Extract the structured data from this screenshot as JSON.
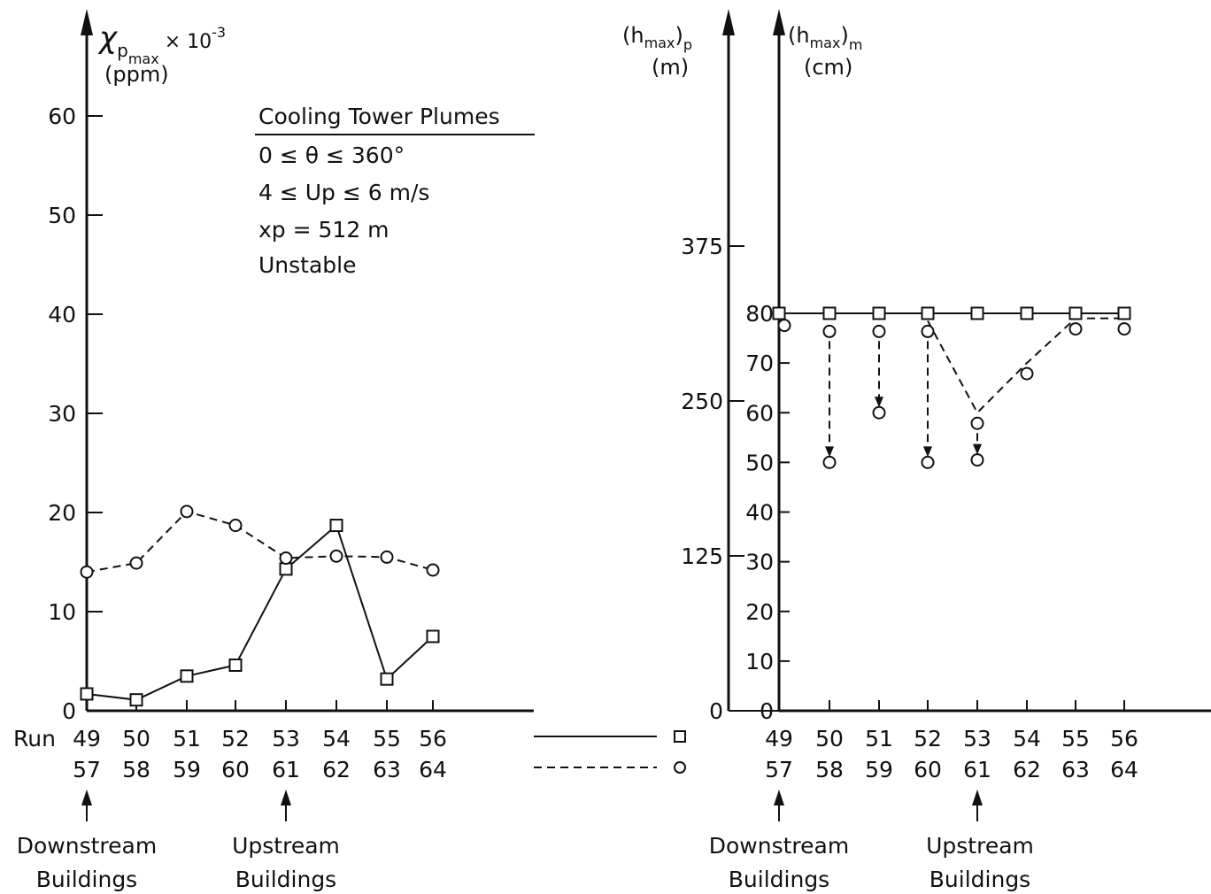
{
  "chart_data": [
    {
      "type": "line",
      "ylabel": "χpmax × 10⁻³",
      "ylabel_base": "χ",
      "ylabel_sub": "p",
      "ylabel_subsub": "max",
      "ylabel_mult": "× 10",
      "ylabel_exp": "-3",
      "yunit": "(ppm)",
      "ylim": [
        0,
        60
      ],
      "yticks": [
        "0",
        "10",
        "20",
        "30",
        "40",
        "50",
        "60"
      ],
      "yticks_values": [
        0,
        10,
        20,
        30,
        40,
        50,
        60
      ],
      "run_label": "Run",
      "x_row1": [
        "49",
        "50",
        "51",
        "52",
        "53",
        "54",
        "55",
        "56"
      ],
      "x_row2": [
        "57",
        "58",
        "59",
        "60",
        "61",
        "62",
        "63",
        "64"
      ],
      "series": [
        {
          "marker": "square",
          "line": "solid",
          "values": [
            1.7,
            1.1,
            3.5,
            4.6,
            14.3,
            18.7,
            3.2,
            7.5
          ]
        },
        {
          "marker": "circle",
          "line": "dashed",
          "values": [
            14.0,
            14.9,
            20.1,
            18.7,
            15.4,
            15.6,
            15.5,
            14.2
          ]
        }
      ],
      "annotation": {
        "title": "Cooling Tower Plumes",
        "lines": [
          "0 ≤ θ ≤ 360°",
          "4 ≤ Up ≤ 6 m/s",
          "xp = 512 m",
          "Unstable"
        ]
      },
      "arrows": [
        {
          "at_index": 0,
          "lines": [
            "Downstream",
            "Buildings"
          ]
        },
        {
          "at_index": 4,
          "lines": [
            "Upstream",
            "Buildings"
          ]
        }
      ]
    },
    {
      "type": "line",
      "ylabel_outer": "(hmax)p",
      "ylabel_outer_base": "(h",
      "ylabel_outer_sub": "max",
      "ylabel_outer_close": ")",
      "ylabel_outer_sub2": "p",
      "yunit_outer": "(m)",
      "yticks_outer": [
        "0",
        "125",
        "250",
        "375"
      ],
      "yticks_outer_values": [
        0,
        125,
        250,
        375
      ],
      "ylabel_inner": "(hmax)m",
      "ylabel_inner_base": "(h",
      "ylabel_inner_sub": "max",
      "ylabel_inner_close": ")",
      "ylabel_inner_sub2": "m",
      "yunit_inner": "(cm)",
      "yticks_inner": [
        "0",
        "10",
        "20",
        "30",
        "40",
        "50",
        "60",
        "70",
        "80"
      ],
      "yticks_inner_values": [
        0,
        10,
        20,
        30,
        40,
        50,
        60,
        70,
        80
      ],
      "x_row1": [
        "49",
        "50",
        "51",
        "52",
        "53",
        "54",
        "55",
        "56"
      ],
      "x_row2": [
        "57",
        "58",
        "59",
        "60",
        "61",
        "62",
        "63",
        "64"
      ],
      "series": [
        {
          "marker": "square",
          "line": "solid",
          "values": [
            80,
            80,
            80,
            80,
            80,
            80,
            80,
            80
          ]
        },
        {
          "marker": "circle",
          "line": "dashed",
          "values": [
            79,
            78.5,
            78.5,
            78.5,
            60,
            70,
            79,
            79
          ],
          "drops": [
            {
              "index": 1,
              "from": 78.5,
              "to": 50
            },
            {
              "index": 2,
              "from": 78.5,
              "to": 60
            },
            {
              "index": 3,
              "from": 78.5,
              "to": 50
            },
            {
              "index": 4,
              "from": 60,
              "to": 50.5
            }
          ]
        }
      ],
      "arrows": [
        {
          "at_index": 0,
          "lines": [
            "Downstream",
            "Buildings"
          ]
        },
        {
          "at_index": 4,
          "lines": [
            "Upstream",
            "Buildings"
          ]
        }
      ]
    }
  ],
  "legend": [
    {
      "marker": "square",
      "line": "solid"
    },
    {
      "marker": "circle",
      "line": "dashed"
    }
  ]
}
